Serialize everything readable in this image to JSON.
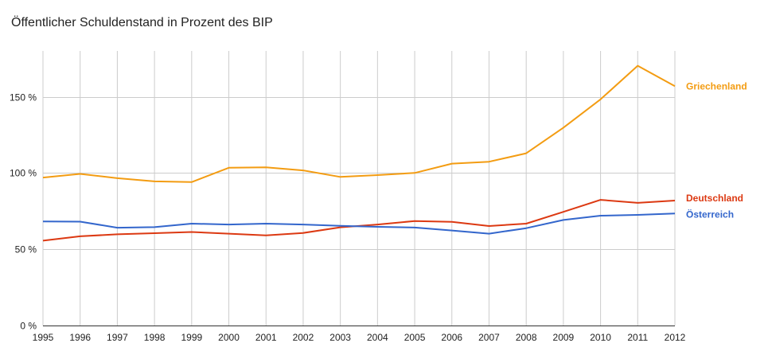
{
  "chart_data": {
    "type": "line",
    "title": "Öffentlicher Schuldenstand in Prozent des BIP",
    "xlabel": "",
    "ylabel": "",
    "x": [
      "1995",
      "1996",
      "1997",
      "1998",
      "1999",
      "2000",
      "2001",
      "2002",
      "2003",
      "2004",
      "2005",
      "2006",
      "2007",
      "2008",
      "2009",
      "2010",
      "2011",
      "2012"
    ],
    "ylim": [
      0,
      180
    ],
    "yticks": [
      {
        "value": 0,
        "label": "0 %"
      },
      {
        "value": 50,
        "label": "50 %"
      },
      {
        "value": 100,
        "label": "100 %"
      },
      {
        "value": 150,
        "label": "150 %"
      }
    ],
    "grid": true,
    "legend": "right-inline-labels",
    "series": [
      {
        "name": "Griechenland",
        "color": "#f39c12",
        "values": [
          97.0,
          99.4,
          96.6,
          94.5,
          94.0,
          103.4,
          103.7,
          101.7,
          97.4,
          98.6,
          100.0,
          106.1,
          107.4,
          112.9,
          129.7,
          148.3,
          170.3,
          156.9
        ]
      },
      {
        "name": "Deutschland",
        "color": "#dc3912",
        "values": [
          55.6,
          58.5,
          59.8,
          60.5,
          61.3,
          60.2,
          59.1,
          60.7,
          64.4,
          66.2,
          68.5,
          68.0,
          65.2,
          66.8,
          74.5,
          82.4,
          80.4,
          81.9
        ]
      },
      {
        "name": "Österreich",
        "color": "#3366cc",
        "values": [
          68.2,
          68.1,
          64.1,
          64.5,
          66.8,
          66.2,
          66.8,
          66.2,
          65.3,
          64.7,
          64.2,
          62.3,
          60.2,
          63.8,
          69.2,
          72.0,
          72.5,
          73.4
        ]
      }
    ]
  }
}
